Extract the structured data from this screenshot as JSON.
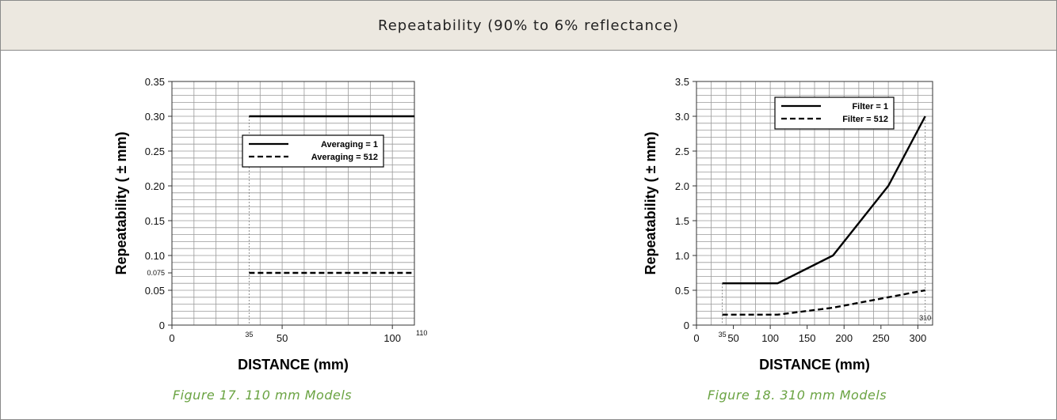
{
  "header": {
    "title": "Repeatability (90% to 6% reflectance)"
  },
  "figures": [
    {
      "caption": "Figure 17. 110 mm Models"
    },
    {
      "caption": "Figure 18. 310 mm Models"
    }
  ],
  "chart_data": [
    {
      "type": "line",
      "xlabel": "DISTANCE (mm)",
      "ylabel": "Repeatability ( ± mm)",
      "xlim": [
        0,
        110
      ],
      "ylim": [
        0,
        0.35
      ],
      "x_ticks": [
        "0",
        "50",
        "100"
      ],
      "x_special_ticks": [
        "35",
        "110"
      ],
      "y_ticks": [
        "0",
        "0.05",
        "0.10",
        "0.15",
        "0.20",
        "0.25",
        "0.30",
        "0.35"
      ],
      "y_special_ticks": [
        "0.075"
      ],
      "grid": true,
      "legend_position": "middle-right",
      "series": [
        {
          "name": "Averaging = 1",
          "style": "solid",
          "x": [
            35,
            110
          ],
          "y": [
            0.3,
            0.3
          ]
        },
        {
          "name": "Averaging = 512",
          "style": "dashed",
          "x": [
            35,
            110
          ],
          "y": [
            0.075,
            0.075
          ]
        }
      ]
    },
    {
      "type": "line",
      "xlabel": "DISTANCE (mm)",
      "ylabel": "Repeatability ( ± mm)",
      "xlim": [
        0,
        320
      ],
      "ylim": [
        0,
        3.5
      ],
      "x_ticks": [
        "0",
        "50",
        "100",
        "150",
        "200",
        "250",
        "300"
      ],
      "x_special_ticks": [
        "35",
        "310"
      ],
      "y_ticks": [
        "0",
        "0.5",
        "1.0",
        "1.5",
        "2.0",
        "2.5",
        "3.0",
        "3.5"
      ],
      "grid": true,
      "legend_position": "top-left",
      "series": [
        {
          "name": "Filter = 1",
          "style": "solid",
          "x": [
            35,
            110,
            185,
            260,
            310
          ],
          "y": [
            0.6,
            0.6,
            1.0,
            2.0,
            3.0
          ]
        },
        {
          "name": "Filter = 512",
          "style": "dashed",
          "x": [
            35,
            110,
            185,
            260,
            310
          ],
          "y": [
            0.15,
            0.15,
            0.25,
            0.4,
            0.5
          ]
        }
      ]
    }
  ]
}
